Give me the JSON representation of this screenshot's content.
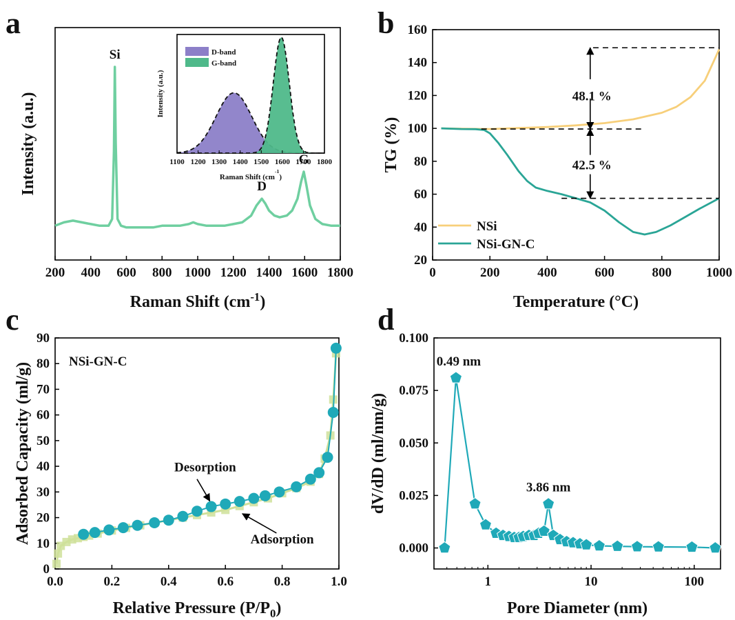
{
  "panels": [
    {
      "label": "a"
    },
    {
      "label": "b"
    },
    {
      "label": "c"
    },
    {
      "label": "d"
    }
  ],
  "chart_data": [
    {
      "type": "line",
      "panel": "a",
      "xlabel": "Raman Shift (cm",
      "xlabel_sup": "-1",
      "xlabel_end": ")",
      "ylabel": "Intensity (a.u.)",
      "xlim": [
        200,
        1800
      ],
      "xticks": [
        200,
        400,
        600,
        800,
        1000,
        1200,
        1400,
        1600,
        1800
      ],
      "color": "#6fcfa0",
      "series": [
        {
          "x": [
            200,
            250,
            300,
            350,
            400,
            450,
            500,
            520,
            530,
            535,
            540,
            550,
            570,
            600,
            650,
            700,
            750,
            800,
            850,
            900,
            950,
            975,
            1000,
            1050,
            1100,
            1150,
            1200,
            1250,
            1300,
            1330,
            1360,
            1380,
            1400,
            1430,
            1460,
            1500,
            1530,
            1560,
            1580,
            1595,
            1610,
            1630,
            1660,
            1700,
            1750,
            1800
          ],
          "y": [
            0.06,
            0.08,
            0.09,
            0.08,
            0.07,
            0.06,
            0.06,
            0.1,
            0.5,
            1.0,
            0.55,
            0.1,
            0.06,
            0.05,
            0.05,
            0.05,
            0.05,
            0.06,
            0.06,
            0.06,
            0.07,
            0.08,
            0.07,
            0.06,
            0.06,
            0.06,
            0.07,
            0.08,
            0.12,
            0.18,
            0.22,
            0.19,
            0.15,
            0.12,
            0.11,
            0.12,
            0.15,
            0.22,
            0.32,
            0.38,
            0.3,
            0.18,
            0.1,
            0.07,
            0.06,
            0.06
          ]
        }
      ],
      "annotations": [
        {
          "text": "Si",
          "x": 535
        },
        {
          "text": "D",
          "x": 1360
        },
        {
          "text": "G",
          "x": 1595
        }
      ],
      "inset": {
        "xlabel": "Raman Shift (cm",
        "xlabel_sup": "-1",
        "xlabel_end": ")",
        "ylabel": "Intensity (a.u.)",
        "xlim": [
          1100,
          1800
        ],
        "xticks": [
          1100,
          1200,
          1300,
          1400,
          1500,
          1600,
          1700,
          1800
        ],
        "legend": [
          {
            "name": "D-band",
            "color": "#8c7fc8"
          },
          {
            "name": "G-band",
            "color": "#4fb98a"
          }
        ],
        "bands": [
          {
            "name": "D-band",
            "center": 1370,
            "sigma": 85,
            "amp": 0.52,
            "color": "#8c7fc8"
          },
          {
            "name": "G-band",
            "center": 1595,
            "sigma": 38,
            "amp": 1.0,
            "color": "#4fb98a"
          }
        ]
      }
    },
    {
      "type": "line",
      "panel": "b",
      "xlabel": "Temperature (°C)",
      "ylabel": "TG (%)",
      "xlim": [
        0,
        1000
      ],
      "ylim": [
        20,
        160
      ],
      "xticks": [
        0,
        200,
        400,
        600,
        800,
        1000
      ],
      "yticks": [
        20,
        40,
        60,
        80,
        100,
        120,
        140,
        160
      ],
      "series": [
        {
          "name": "NSi",
          "color": "#f7cf7a",
          "x": [
            30,
            100,
            200,
            300,
            400,
            500,
            600,
            700,
            800,
            850,
            900,
            950,
            1000
          ],
          "y": [
            100,
            99.8,
            99.6,
            100.2,
            100.8,
            101.8,
            103.2,
            105.5,
            109.5,
            113,
            119,
            129,
            148
          ]
        },
        {
          "name": "NSi-GN-C",
          "color": "#2aa596",
          "x": [
            30,
            100,
            150,
            180,
            200,
            230,
            260,
            300,
            330,
            360,
            400,
            450,
            500,
            550,
            600,
            650,
            700,
            740,
            780,
            830,
            880,
            930,
            1000
          ],
          "y": [
            100,
            99.6,
            99.5,
            99,
            97,
            91,
            84,
            74,
            68,
            64,
            62,
            60,
            57.5,
            55,
            50,
            43,
            37,
            35.5,
            37,
            41,
            46,
            51,
            57.5
          ]
        }
      ],
      "annotations": [
        {
          "text": "48.1 %",
          "x": 580,
          "y": 120
        },
        {
          "text": "42.5 %",
          "x": 580,
          "y": 78
        }
      ],
      "reference_lines": [
        {
          "x1": 560,
          "x2": 1000,
          "y": 149
        },
        {
          "x1": 170,
          "x2": 730,
          "y": 99.6
        },
        {
          "x1": 450,
          "x2": 1000,
          "y": 57.5
        }
      ],
      "arrows": [
        {
          "x": 550,
          "y_top": 149,
          "y_mid": 124,
          "y_bottom": 99.6
        },
        {
          "x": 550,
          "y_top": 99.6,
          "y_mid": 78,
          "y_bottom": 57.5
        }
      ],
      "legend_position": "bottom-left"
    },
    {
      "type": "scatter",
      "panel": "c",
      "xlabel": "Relative Pressure (P/P",
      "xlabel_sub": "0",
      "xlabel_end": ")",
      "ylabel": "Adsorbed Capacity (ml/g)",
      "xlim": [
        0.0,
        1.0
      ],
      "ylim": [
        0,
        90
      ],
      "xticks": [
        "0.0",
        "0.2",
        "0.4",
        "0.6",
        "0.8",
        "1.0"
      ],
      "yticks": [
        0,
        10,
        20,
        30,
        40,
        50,
        60,
        70,
        80,
        90
      ],
      "title": "NSi-GN-C",
      "series": [
        {
          "name": "Adsorption",
          "color": "#cfe09a",
          "marker": "square",
          "x": [
            0.005,
            0.01,
            0.02,
            0.04,
            0.06,
            0.08,
            0.1,
            0.12,
            0.15,
            0.2,
            0.25,
            0.3,
            0.35,
            0.4,
            0.45,
            0.5,
            0.55,
            0.6,
            0.65,
            0.7,
            0.75,
            0.8,
            0.85,
            0.9,
            0.93,
            0.95,
            0.97,
            0.98,
            0.99
          ],
          "y": [
            2,
            6,
            9,
            10.5,
            11.5,
            12,
            12.5,
            13,
            13.8,
            15,
            16,
            17,
            18,
            19,
            20,
            21,
            22,
            23,
            24.5,
            26,
            27.5,
            29.5,
            31.5,
            34,
            37,
            43,
            52,
            66,
            84
          ]
        },
        {
          "name": "Desorption",
          "color": "#1fa9b8",
          "marker": "circle",
          "x": [
            0.1,
            0.14,
            0.19,
            0.24,
            0.29,
            0.35,
            0.4,
            0.45,
            0.5,
            0.55,
            0.6,
            0.65,
            0.7,
            0.74,
            0.79,
            0.85,
            0.9,
            0.93,
            0.96,
            0.98,
            0.99
          ],
          "y": [
            13.5,
            14.2,
            15.2,
            16.1,
            17,
            18,
            19,
            20.5,
            22.5,
            24.3,
            25.3,
            26.3,
            27.5,
            28.5,
            30,
            32,
            35,
            37.5,
            43.5,
            61,
            86
          ]
        }
      ],
      "annotations": [
        {
          "text": "Desorption",
          "x": 0.42,
          "y": 38
        },
        {
          "text": "Adsorption",
          "x": 0.8,
          "y": 10
        }
      ]
    },
    {
      "type": "line",
      "panel": "d",
      "xlabel": "Pore Diameter (nm)",
      "ylabel": "dV/dD (ml/nm/g)",
      "xscale": "log",
      "xlim": [
        0.3,
        180
      ],
      "ylim": [
        -0.01,
        0.1
      ],
      "xticks": [
        "1",
        "10",
        "100"
      ],
      "yticks": [
        "0.000",
        "0.025",
        "0.050",
        "0.075",
        "0.100"
      ],
      "color": "#1fa9b8",
      "marker": "pentagon",
      "series": [
        {
          "x": [
            0.38,
            0.49,
            0.75,
            0.95,
            1.2,
            1.4,
            1.6,
            1.8,
            2.0,
            2.2,
            2.5,
            2.8,
            3.1,
            3.5,
            3.86,
            4.3,
            5.0,
            5.8,
            6.7,
            7.8,
            9.0,
            12,
            18,
            28,
            45,
            95,
            160
          ],
          "y": [
            0.0,
            0.081,
            0.021,
            0.011,
            0.007,
            0.006,
            0.0055,
            0.005,
            0.005,
            0.0055,
            0.006,
            0.006,
            0.007,
            0.008,
            0.021,
            0.006,
            0.004,
            0.003,
            0.0025,
            0.002,
            0.0015,
            0.001,
            0.0008,
            0.0006,
            0.0005,
            0.0004,
            0.0
          ]
        }
      ],
      "annotations": [
        {
          "text": "0.49 nm",
          "x": 0.49,
          "y": 0.081
        },
        {
          "text": "3.86 nm",
          "x": 3.86,
          "y": 0.021
        }
      ]
    }
  ]
}
